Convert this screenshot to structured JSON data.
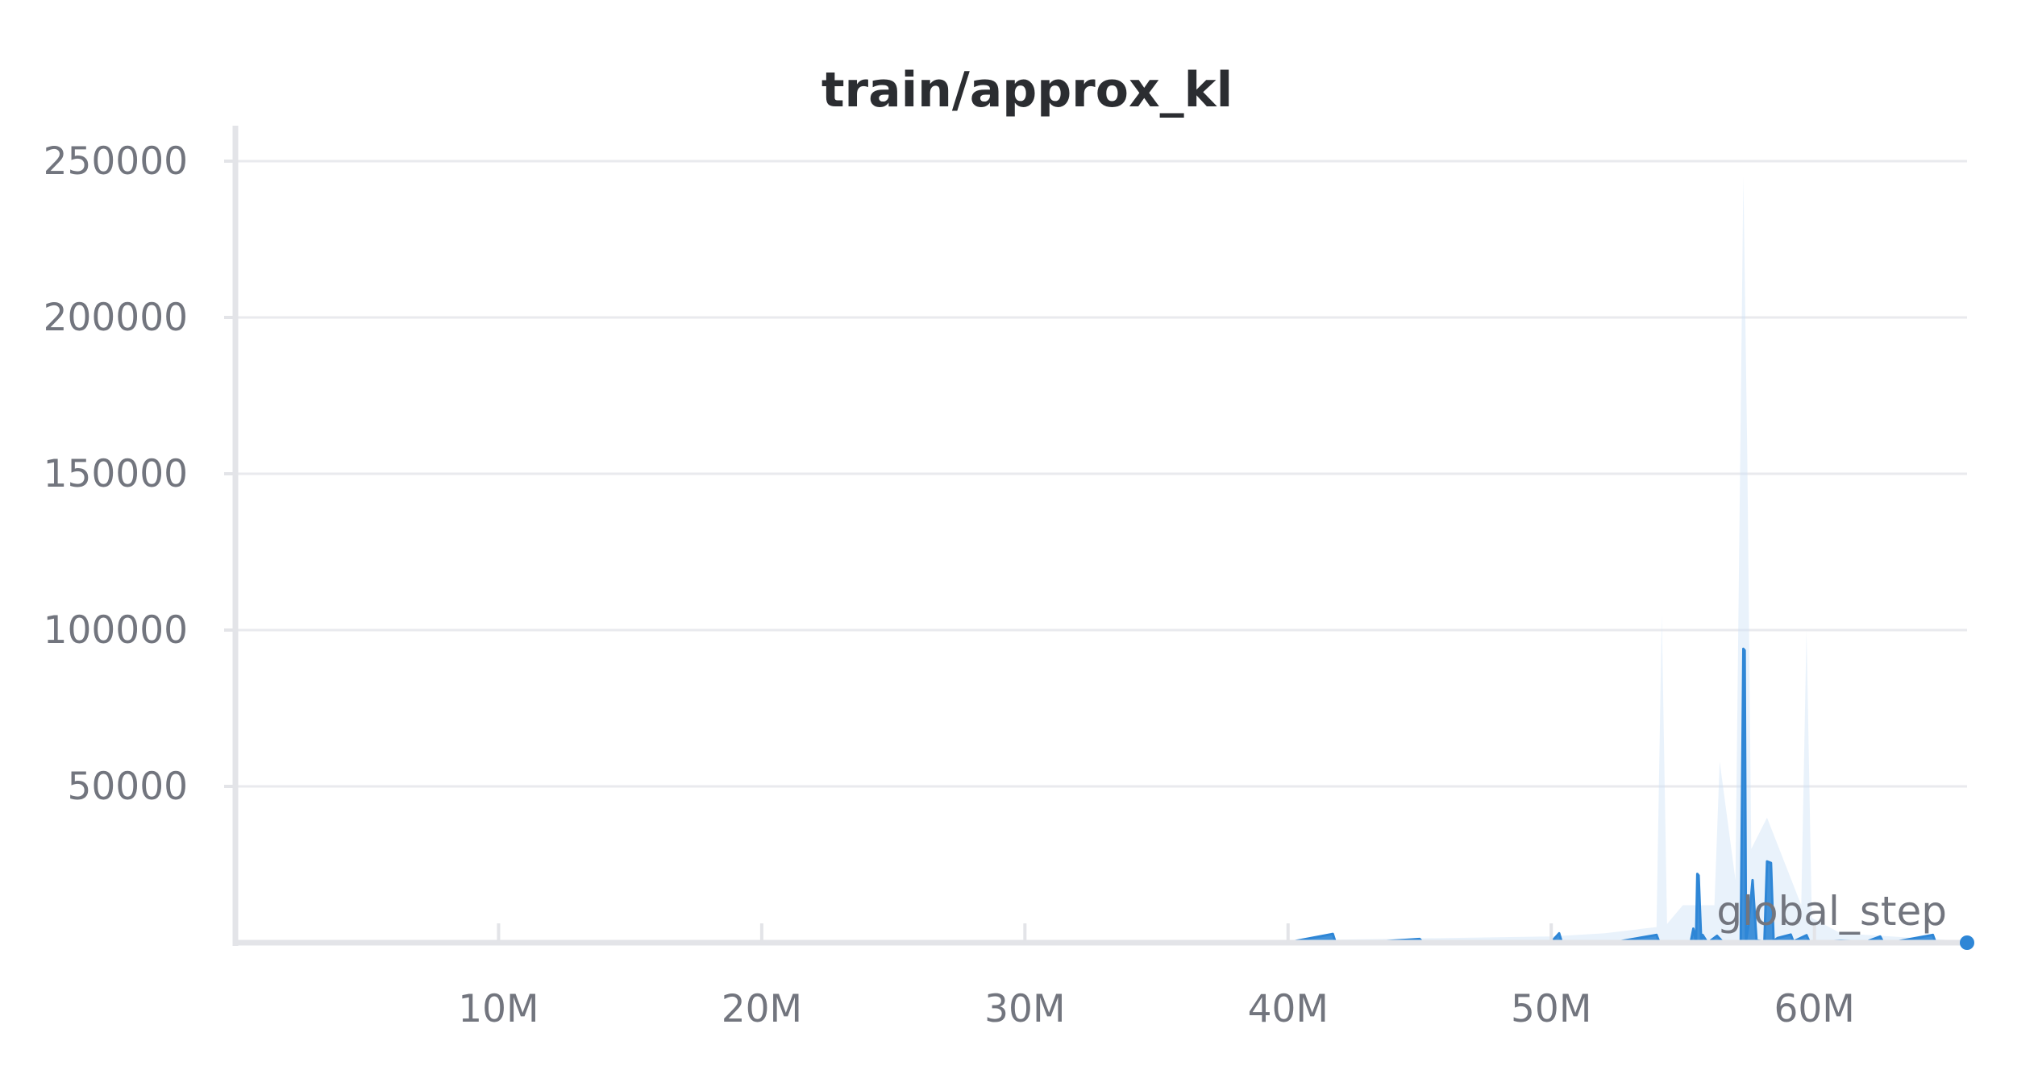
{
  "chart_data": {
    "type": "area",
    "title": "train/approx_kl",
    "xlabel": "global_step",
    "ylabel": "",
    "xlim": [
      0,
      65800000
    ],
    "ylim": [
      0,
      250000
    ],
    "grid": true,
    "x_ticks": [
      10000000,
      20000000,
      30000000,
      40000000,
      50000000,
      60000000
    ],
    "x_tick_labels": [
      "10M",
      "20M",
      "30M",
      "40M",
      "50M",
      "60M"
    ],
    "y_ticks": [
      50000,
      100000,
      150000,
      200000,
      250000
    ],
    "y_tick_labels": [
      "50000",
      "100000",
      "150000",
      "200000",
      "250000"
    ],
    "line_color": "#2e86d6",
    "band_color": "#cfe3f7",
    "series": [
      {
        "x": [
          0,
          40000000,
          41700000,
          41800000,
          42000000,
          43500000,
          45000000,
          45100000,
          46000000,
          50000000,
          50300000,
          50400000,
          51000000,
          52500000,
          54000000,
          54100000,
          55300000,
          55400000,
          55500000,
          55550000,
          55600000,
          55700000,
          55750000,
          55900000,
          56000000,
          56300000,
          56500000,
          56800000,
          57200000,
          57300000,
          57350000,
          57400000,
          57500000,
          57650000,
          57800000,
          58100000,
          58200000,
          58350000,
          58450000,
          58600000,
          59100000,
          59200000,
          59700000,
          59800000,
          60100000,
          61000000,
          62000000,
          62500000,
          62600000,
          63000000,
          64500000,
          64600000,
          65800000
        ],
        "y": [
          0,
          100,
          2800,
          200,
          100,
          400,
          1200,
          200,
          100,
          200,
          3000,
          200,
          100,
          300,
          2500,
          300,
          200,
          4500,
          300,
          22000,
          21500,
          300,
          2500,
          500,
          300,
          2200,
          400,
          300,
          500,
          94000,
          93500,
          500,
          6000,
          20000,
          700,
          400,
          26000,
          25500,
          500,
          1500,
          2600,
          400,
          2400,
          500,
          300,
          600,
          400,
          2000,
          300,
          200,
          2500,
          200,
          0
        ]
      }
    ],
    "band": {
      "x": [
        0,
        39000000,
        50000000,
        52000000,
        54000000,
        54200000,
        54400000,
        55000000,
        56200000,
        56400000,
        57000000,
        57300000,
        57450000,
        57600000,
        58200000,
        59500000,
        59700000,
        59900000,
        61000000,
        65800000
      ],
      "y": [
        0,
        600,
        2000,
        3000,
        5000,
        105000,
        6000,
        12000,
        12000,
        58000,
        20000,
        245000,
        155000,
        30000,
        40000,
        12000,
        100000,
        8000,
        3000,
        500
      ]
    }
  }
}
